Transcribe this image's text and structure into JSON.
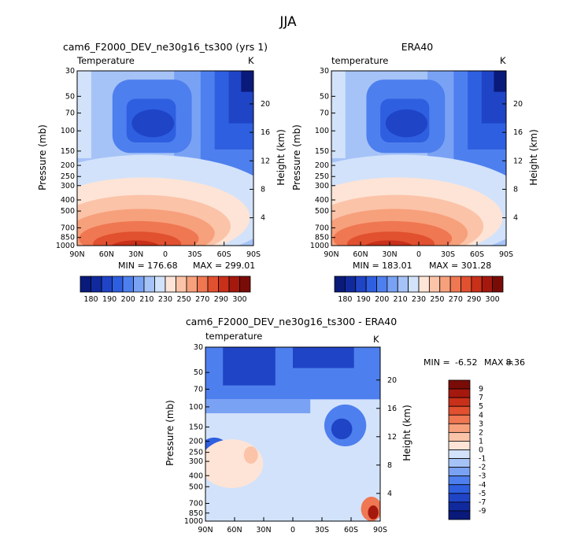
{
  "figure_title": "JJA",
  "chart_data": [
    {
      "type": "heatmap",
      "title": "cam6_F2000_DEV_ne30g16_ts300 (yrs 1)",
      "variable_label": "Temperature",
      "units": "K",
      "ylabel": "Pressure (mb)",
      "y2label": "Height (km)",
      "x_ticks": [
        "90N",
        "60N",
        "30N",
        "0",
        "30S",
        "60S",
        "90S"
      ],
      "y_ticks": [
        "30",
        "50",
        "70",
        "100",
        "150",
        "200",
        "250",
        "300",
        "400",
        "500",
        "700",
        "850",
        "1000"
      ],
      "y2_ticks": [
        "20",
        "16",
        "12",
        "8",
        "4"
      ],
      "y_scale": "log",
      "ylim": [
        1000,
        30
      ],
      "min_label": "MIN = 176.68",
      "max_label": "MAX = 299.01",
      "colorbar_orientation": "horizontal",
      "colorbar_labels": [
        "180",
        "190",
        "200",
        "210",
        "230",
        "250",
        "270",
        "290",
        "300"
      ]
    },
    {
      "type": "heatmap",
      "title": "ERA40",
      "variable_label": "temperature",
      "units": "K",
      "ylabel": "Pressure (mb)",
      "y2label": "Height (km)",
      "x_ticks": [
        "90N",
        "60N",
        "30N",
        "0",
        "30S",
        "60S",
        "90S"
      ],
      "y_ticks": [
        "30",
        "50",
        "70",
        "100",
        "150",
        "200",
        "250",
        "300",
        "400",
        "500",
        "700",
        "850",
        "1000"
      ],
      "y2_ticks": [
        "20",
        "16",
        "12",
        "8",
        "4"
      ],
      "y_scale": "log",
      "ylim": [
        1000,
        30
      ],
      "min_label": "MIN = 183.01",
      "max_label": "MAX = 301.28",
      "colorbar_orientation": "horizontal",
      "colorbar_labels": [
        "180",
        "190",
        "200",
        "210",
        "230",
        "250",
        "270",
        "290",
        "300"
      ]
    },
    {
      "type": "heatmap",
      "title": "cam6_F2000_DEV_ne30g16_ts300 - ERA40",
      "variable_label": "temperature",
      "units": "K",
      "ylabel": "Pressure (mb)",
      "y2label": "Height (km)",
      "x_ticks": [
        "90N",
        "60N",
        "30N",
        "0",
        "30S",
        "60S",
        "90S"
      ],
      "y_ticks": [
        "30",
        "50",
        "70",
        "100",
        "150",
        "200",
        "250",
        "300",
        "400",
        "500",
        "700",
        "850",
        "1000"
      ],
      "y2_ticks": [
        "20",
        "16",
        "12",
        "8",
        "4"
      ],
      "y_scale": "log",
      "ylim": [
        1000,
        30
      ],
      "min_label": "MIN =",
      "min_value": "-6.52",
      "max_label": "MAX =",
      "max_value": "8.36",
      "colorbar_orientation": "vertical",
      "colorbar_labels": [
        "9",
        "7",
        "5",
        "4",
        "3",
        "2",
        "1",
        "0",
        "-1",
        "-2",
        "-3",
        "-4",
        "-5",
        "-7",
        "-9"
      ]
    }
  ],
  "colors": {
    "abs_scale": [
      "#0a1a7a",
      "#102a9e",
      "#1f44c6",
      "#2e5fe0",
      "#4e7fee",
      "#7aa2f4",
      "#a6c3f7",
      "#d2e2fb",
      "#fde4d6",
      "#fbc3a8",
      "#f7a07c",
      "#ef7752",
      "#e1502f",
      "#c8301a",
      "#a5180e",
      "#7a0c08"
    ],
    "diff_scale": [
      "#7a0c08",
      "#a5180e",
      "#c8301a",
      "#e1502f",
      "#ef7752",
      "#f7a07c",
      "#fbc3a8",
      "#fde4d6",
      "#d2e2fb",
      "#a6c3f7",
      "#7aa2f4",
      "#4e7fee",
      "#2e5fe0",
      "#1f44c6",
      "#102a9e",
      "#0a1a7a"
    ]
  }
}
